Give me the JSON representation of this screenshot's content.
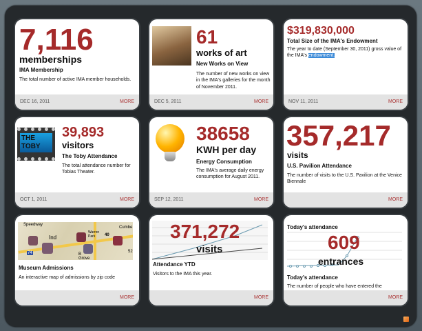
{
  "cards": [
    {
      "number": "7,116",
      "unit": "memberships",
      "title": "IMA Membership",
      "desc": "The total number of active IMA member households.",
      "date": "DEC 16, 2011",
      "more": "MORE"
    },
    {
      "number": "61",
      "unit": "works of art",
      "title": "New Works on View",
      "desc": "The number of new works on view in the IMA's galleries for the month of November 2011.",
      "date": "DEC 5, 2011",
      "more": "MORE"
    },
    {
      "number": "$319,830,000",
      "title": "Total Size of the IMA's Endowment",
      "desc": "The year to date (September 30, 2011) gross value of the IMA's ",
      "desc_link": "endowment.",
      "date": "NOV 11, 2011",
      "more": "MORE"
    },
    {
      "number": "39,893",
      "unit": "visitors",
      "title": "The Toby Attendance",
      "desc": "The total attendance number for Tobias Theater.",
      "date": "OCT 1, 2011",
      "more": "MORE",
      "logo": "THE TOBY"
    },
    {
      "number": "38658",
      "unit": "KWH per day",
      "title": "Energy Consumption",
      "desc": "The IMA's average daily energy consumption for August 2011.",
      "date": "SEP 12, 2011",
      "more": "MORE"
    },
    {
      "number": "357,217",
      "unit": "visits",
      "title": "U.S. Pavilion Attendance",
      "desc": "The number of visits to the U.S. Pavilion at the Venice Biennale",
      "more": "MORE"
    },
    {
      "title": "Museum Admissions",
      "desc": "An interactive map of admissions by zip code",
      "more": "MORE",
      "map_labels": [
        "Speedway",
        "Ind",
        "Warren Park",
        "40",
        "Cumbe",
        "74",
        "B Grove",
        "52"
      ]
    },
    {
      "number": "371,272",
      "unit": "visits",
      "title": "Attendance YTD",
      "desc": "Visitors to the IMA this year.",
      "more": "MORE"
    },
    {
      "header": "Today's attendance",
      "number": "609",
      "unit": "entrances",
      "title": "Today's attendance",
      "desc": "The number of people who have entered the",
      "more": "MORE"
    }
  ],
  "rss_icon": "rss-icon",
  "colors": {
    "accent": "#a52a2a",
    "panel": "#25292c"
  }
}
